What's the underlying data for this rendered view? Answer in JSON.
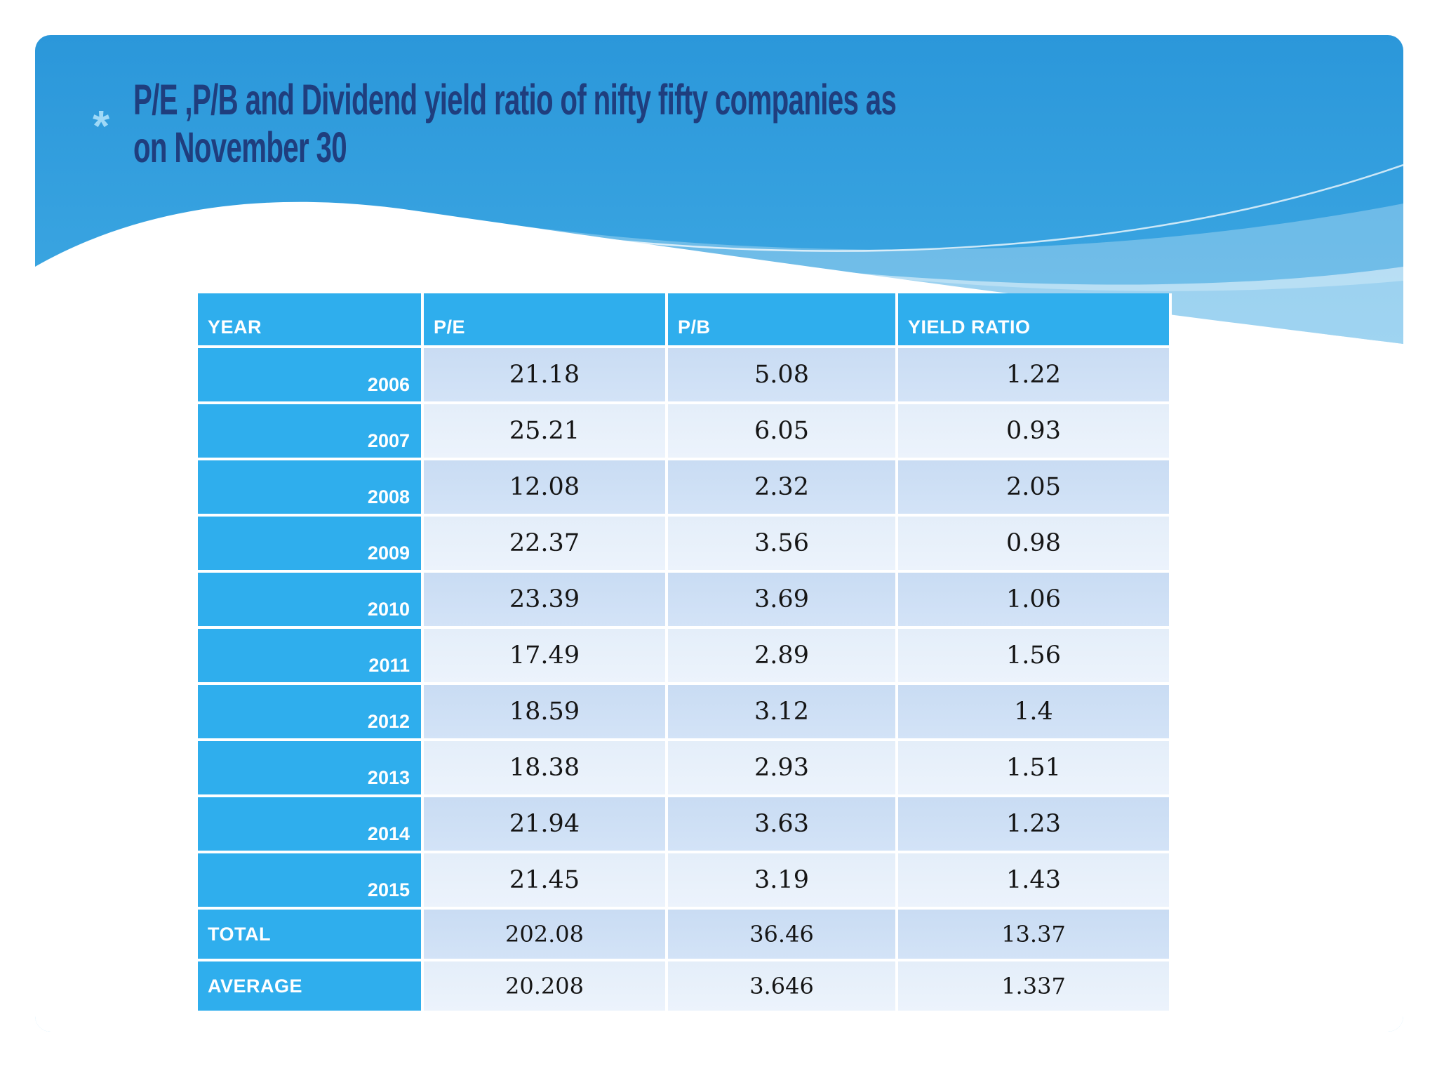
{
  "slide": {
    "bullet_glyph": "*",
    "title_lines": [
      "P/E ,P/B and Dividend yield ratio of nifty fifty companies as",
      "on November 30"
    ]
  },
  "table": {
    "columns": [
      "YEAR",
      "P/E",
      "P/B",
      "YIELD RATIO"
    ],
    "rows": [
      {
        "year": "2006",
        "values": [
          "21.18",
          "5.08",
          "1.22"
        ]
      },
      {
        "year": "2007",
        "values": [
          "25.21",
          "6.05",
          "0.93"
        ]
      },
      {
        "year": "2008",
        "values": [
          "12.08",
          "2.32",
          "2.05"
        ]
      },
      {
        "year": "2009",
        "values": [
          "22.37",
          "3.56",
          "0.98"
        ]
      },
      {
        "year": "2010",
        "values": [
          "23.39",
          "3.69",
          "1.06"
        ]
      },
      {
        "year": "2011",
        "values": [
          "17.49",
          "2.89",
          "1.56"
        ]
      },
      {
        "year": "2012",
        "values": [
          "18.59",
          "3.12",
          "1.4"
        ]
      },
      {
        "year": "2013",
        "values": [
          "18.38",
          "2.93",
          "1.51"
        ]
      },
      {
        "year": "2014",
        "values": [
          "21.94",
          "3.63",
          "1.23"
        ]
      },
      {
        "year": "2015",
        "values": [
          "21.45",
          "3.19",
          "1.43"
        ]
      }
    ],
    "summary_rows": [
      {
        "label": "TOTAL",
        "values": [
          "202.08",
          "36.46",
          "13.37"
        ]
      },
      {
        "label": "AVERAGE",
        "values": [
          "20.208",
          "3.646",
          "1.337"
        ]
      }
    ]
  },
  "colors": {
    "title_text": "#1F3E7E",
    "header_cell_blue": "#2FAEED",
    "row_band_dark": "#CDDFF5",
    "row_band_light": "#E8F1FB",
    "bullet_blue": "#9FD9F7",
    "value_text": "#151515"
  }
}
